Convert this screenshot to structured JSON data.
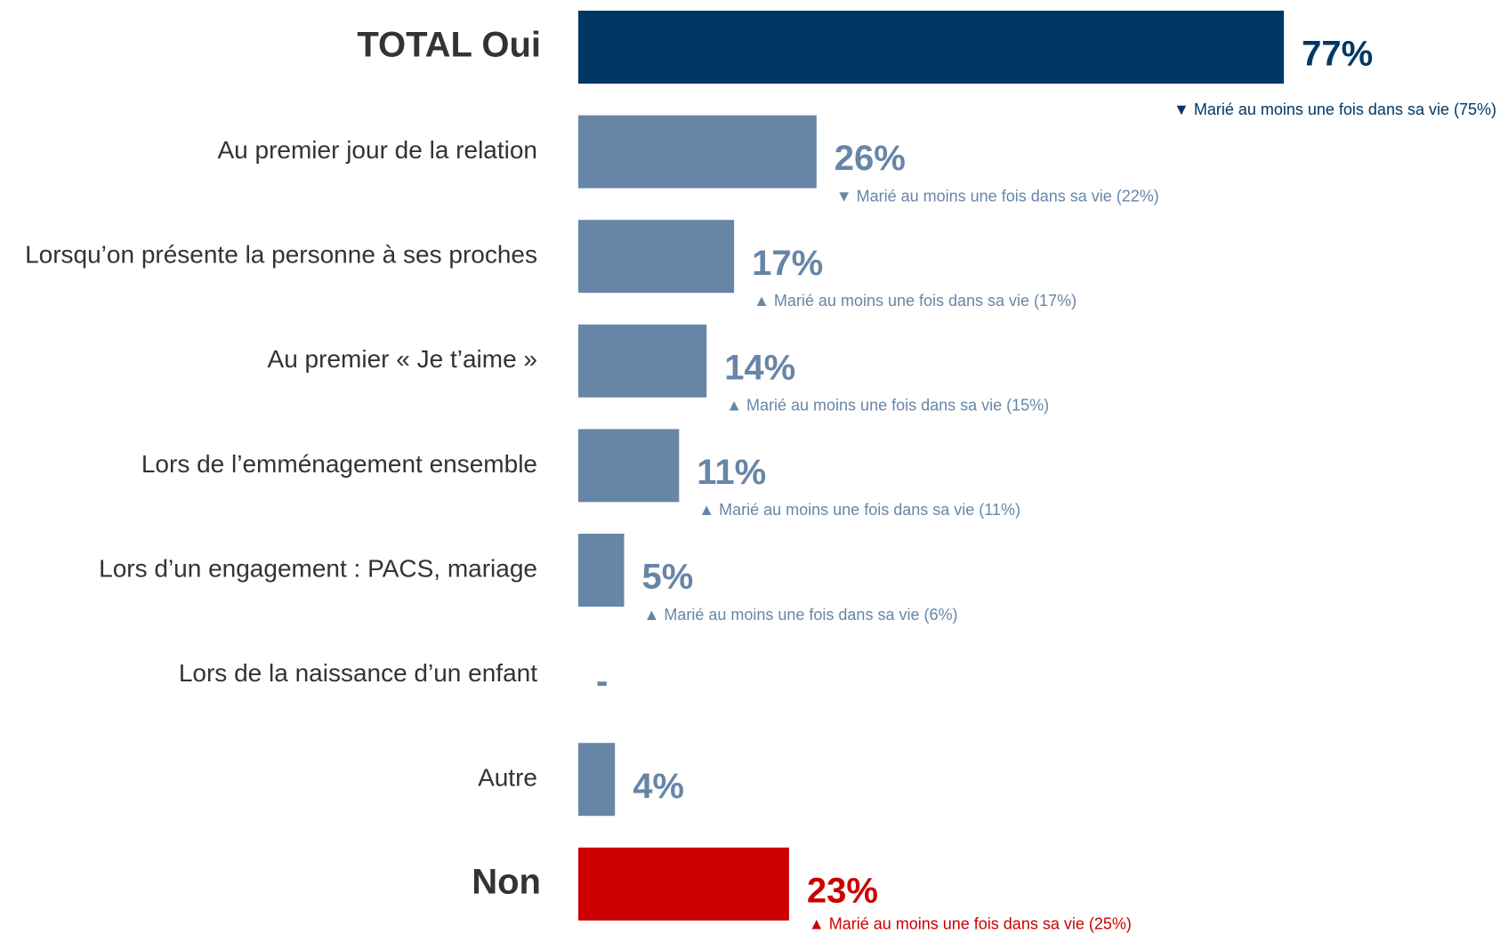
{
  "chart_data": {
    "type": "bar",
    "categories": [
      "TOTAL Oui",
      "Au premier jour de la relation",
      "Lorsqu’on présente la personne à ses proches",
      "Au premier « Je t’aime »",
      "Lors de l’emménagement ensemble",
      "Lors d’un engagement : PACS, mariage",
      "Lors de la naissance d’un enfant",
      "Autre",
      "Non"
    ],
    "values": [
      77,
      26,
      17,
      14,
      11,
      5,
      null,
      4,
      23
    ],
    "value_labels": [
      "77%",
      "26%",
      "17%",
      "14%",
      "11%",
      "5%",
      "-",
      "4%",
      "23%"
    ],
    "colors": [
      "#003865",
      "#6786a7",
      "#6786a7",
      "#6786a7",
      "#6786a7",
      "#6786a7",
      "#6786a7",
      "#6786a7",
      "#cc0000"
    ],
    "annotations": [
      "▼ Marié au moins une fois dans sa vie (75%)",
      "▼ Marié au moins une fois dans sa vie (22%)",
      "▲ Marié au moins une fois dans sa vie (17%)",
      "▲ Marié au moins une fois dans sa vie (15%)",
      "▲ Marié au moins une fois dans sa vie (11%)",
      "▲ Marié au moins une fois dans sa vie (6%)",
      null,
      null,
      "▲ Marié au moins une fois dans sa vie (25%)"
    ]
  }
}
